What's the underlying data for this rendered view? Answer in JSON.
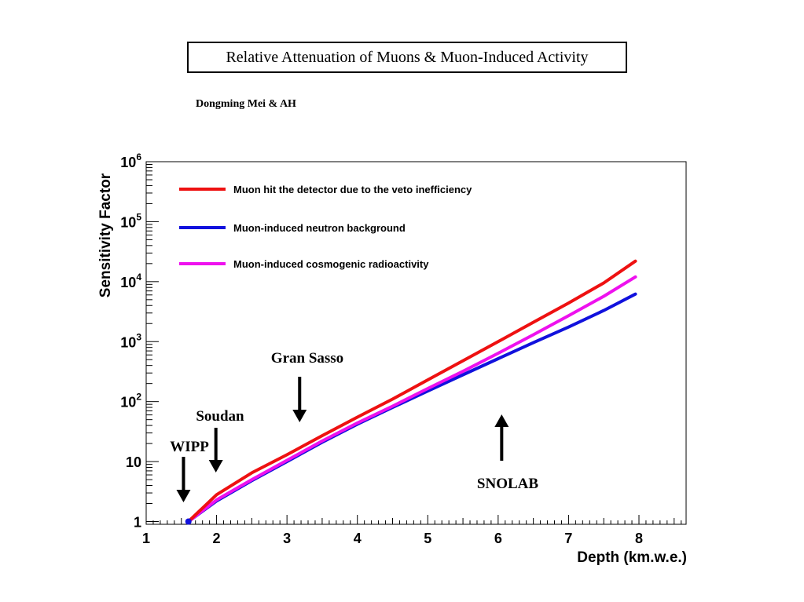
{
  "header": {
    "title": "Relative Attenuation of Muons & Muon-Induced Activity",
    "authors": "Dongming Mei & AH"
  },
  "chart_data": {
    "type": "line",
    "xlabel": "Depth (km.w.e.)",
    "ylabel": "Sensitivity Factor",
    "xlim": [
      1,
      8.67
    ],
    "ylim": [
      0.9,
      1000000
    ],
    "yscale": "log",
    "x_ticks": [
      {
        "label": "1",
        "value": 1
      },
      {
        "label": "2",
        "value": 2
      },
      {
        "label": "3",
        "value": 3
      },
      {
        "label": "4",
        "value": 4
      },
      {
        "label": "5",
        "value": 5
      },
      {
        "label": "6",
        "value": 6
      },
      {
        "label": "7",
        "value": 7
      },
      {
        "label": "8",
        "value": 8
      }
    ],
    "y_ticks": [
      {
        "base": "1",
        "exp": "",
        "value": 1
      },
      {
        "base": "10",
        "exp": "",
        "value": 10
      },
      {
        "base": "10",
        "exp": "2",
        "value": 100
      },
      {
        "base": "10",
        "exp": "3",
        "value": 1000
      },
      {
        "base": "10",
        "exp": "4",
        "value": 10000
      },
      {
        "base": "10",
        "exp": "5",
        "value": 100000
      },
      {
        "base": "10",
        "exp": "6",
        "value": 1000000
      }
    ],
    "legend_placement": "top-left",
    "series": [
      {
        "name": "Muon hit the detector due to the veto inefficiency",
        "color": "#ee1111",
        "x": [
          1.6,
          2.0,
          2.5,
          3.0,
          3.5,
          4.0,
          4.5,
          5.0,
          5.5,
          6.0,
          6.5,
          7.0,
          7.5,
          7.95
        ],
        "y": [
          1,
          2.8,
          6.5,
          13,
          27,
          55,
          110,
          230,
          480,
          1000,
          2100,
          4400,
          9500,
          22000
        ]
      },
      {
        "name": "Muon-induced neutron background",
        "color": "#1111dd",
        "x": [
          1.6,
          2.0,
          2.5,
          3.0,
          3.5,
          4.0,
          4.5,
          5.0,
          5.5,
          6.0,
          6.5,
          7.0,
          7.5,
          7.95
        ],
        "y": [
          1,
          2.2,
          4.8,
          10,
          21,
          42,
          80,
          150,
          280,
          520,
          960,
          1750,
          3300,
          6200
        ]
      },
      {
        "name": "Muon-induced cosmogenic radioactivity",
        "color": "#ee11ee",
        "x": [
          1.6,
          2.0,
          2.5,
          3.0,
          3.5,
          4.0,
          4.5,
          5.0,
          5.5,
          6.0,
          6.5,
          7.0,
          7.5,
          7.95
        ],
        "y": [
          1,
          2.3,
          5.0,
          10.5,
          22,
          44,
          84,
          165,
          320,
          640,
          1300,
          2700,
          5700,
          12000
        ]
      }
    ],
    "annotations": [
      {
        "text": "Gran Sasso",
        "arrow": "down",
        "x": 3.18
      },
      {
        "text": "Soudan",
        "arrow": "down",
        "x": 1.99
      },
      {
        "text": "WIPP",
        "arrow": "down",
        "x": 1.53
      },
      {
        "text": "SNOLAB",
        "arrow": "up",
        "x": 6.05
      }
    ]
  }
}
